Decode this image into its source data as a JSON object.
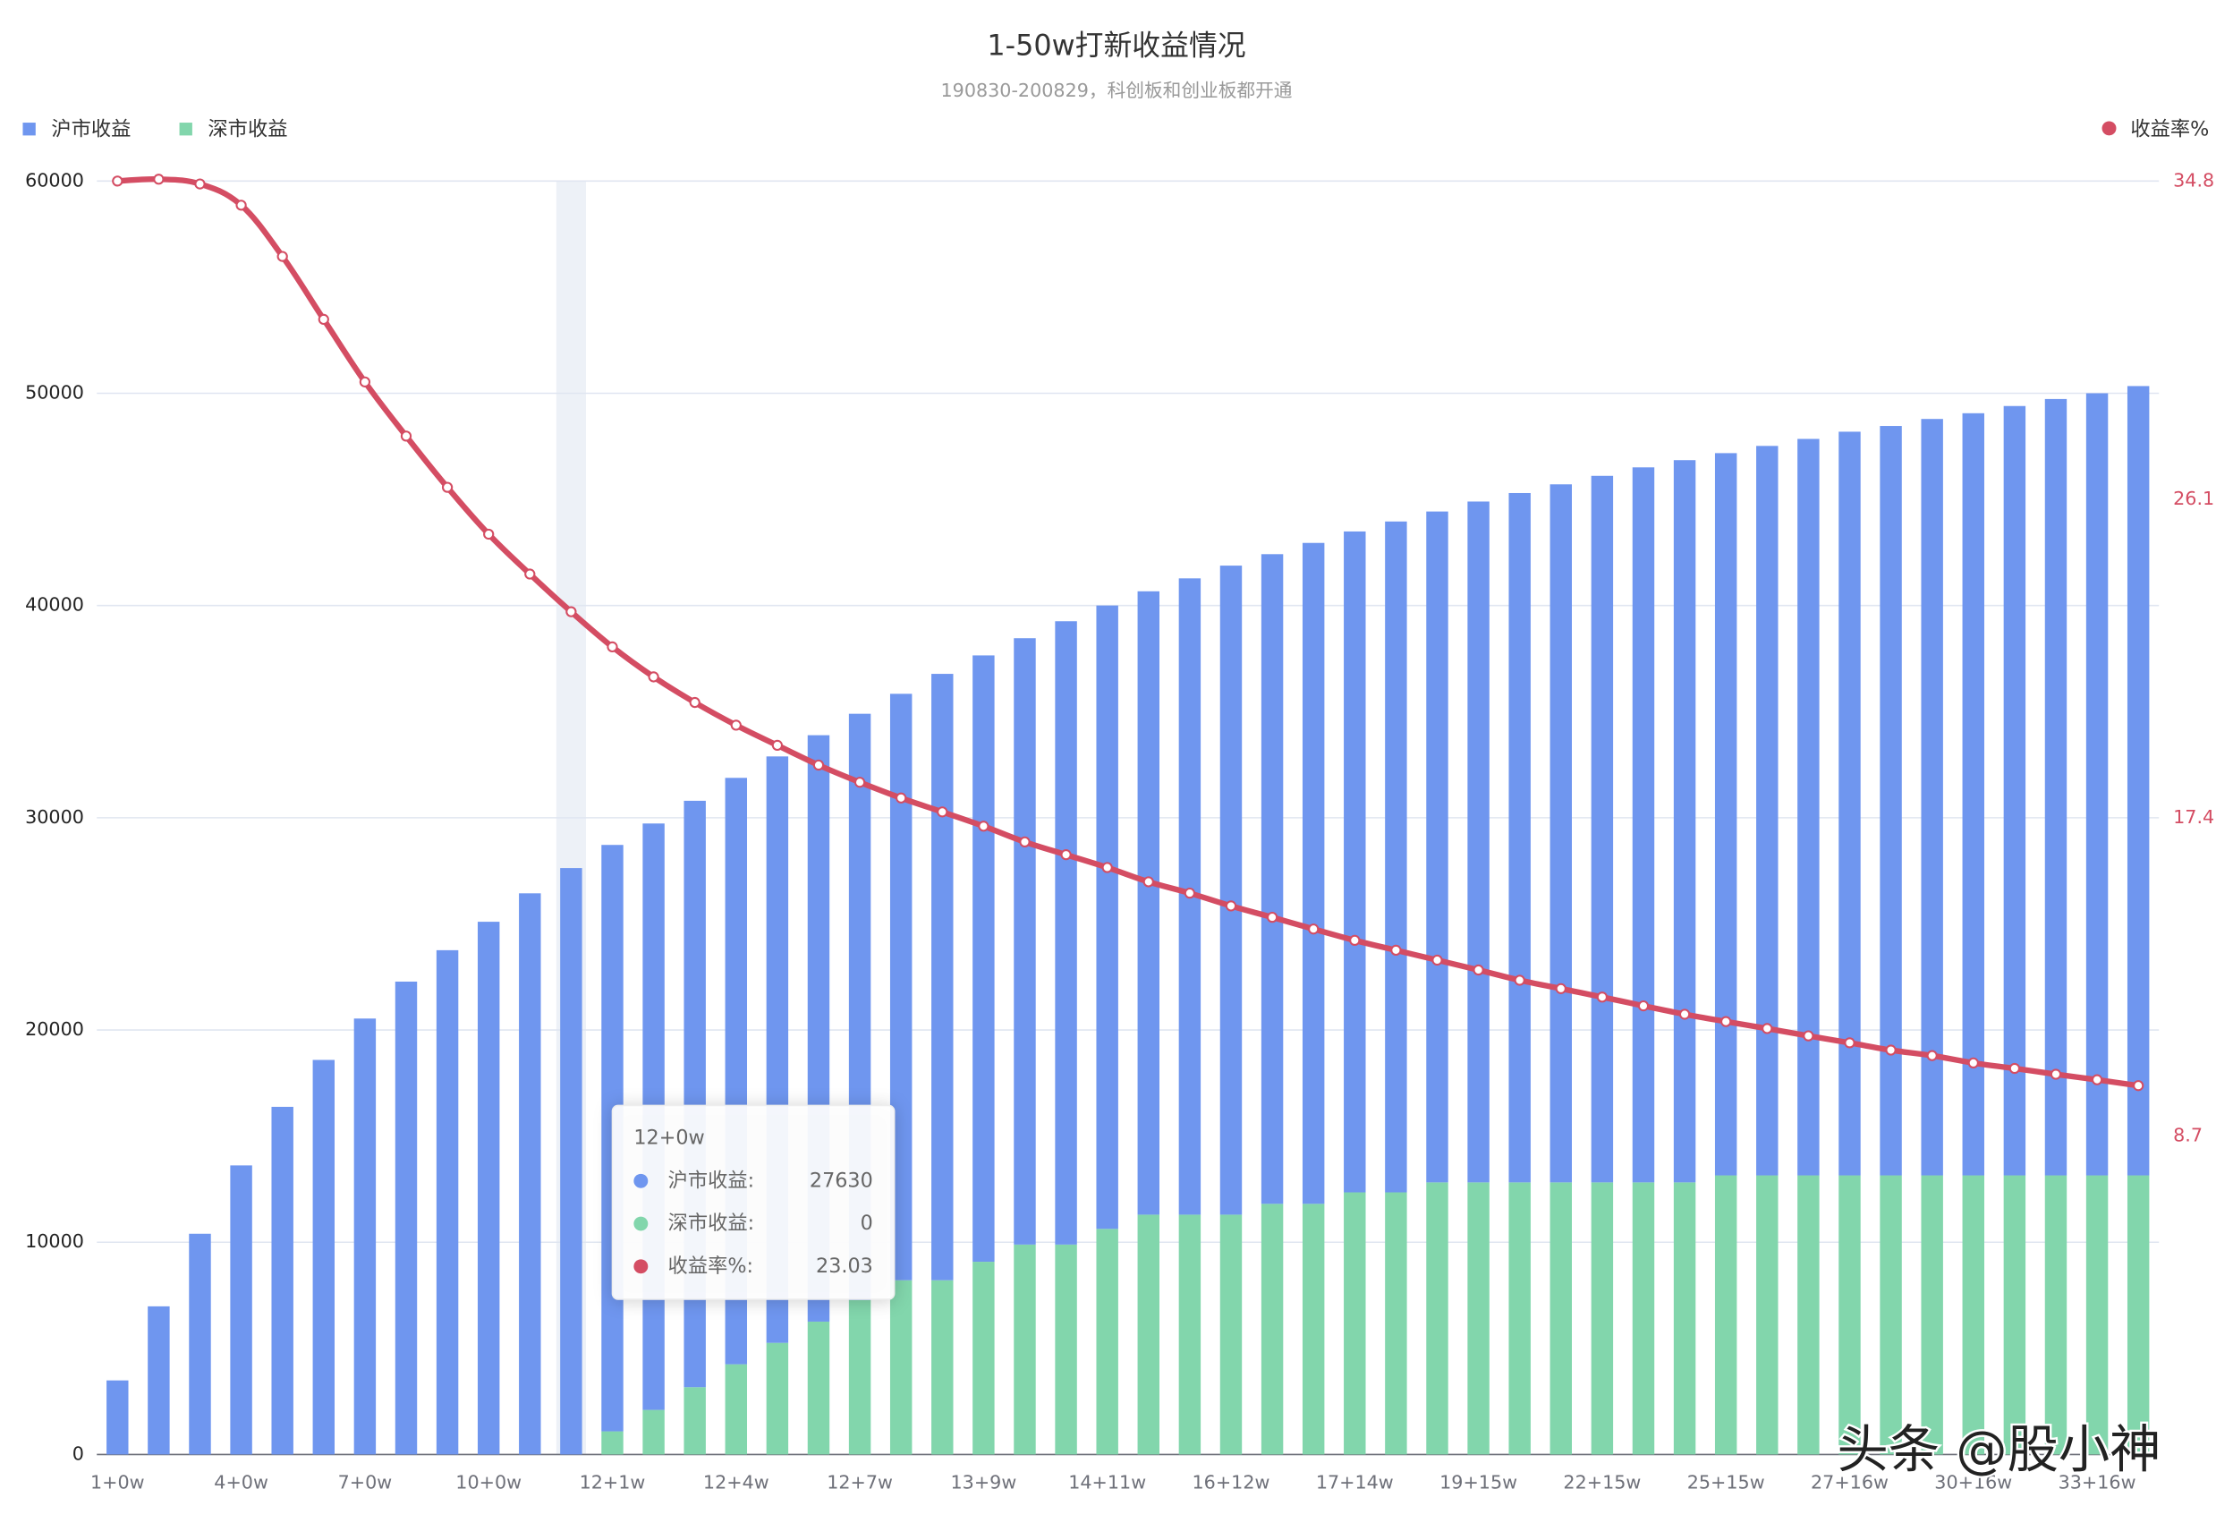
{
  "chart_data": {
    "type": "bar",
    "title": "1-50w打新收益情况",
    "subtitle": "190830-200829，科创板和创业板都开通",
    "categories": [
      "1+0w",
      null,
      null,
      "4+0w",
      null,
      null,
      "7+0w",
      null,
      null,
      "10+0w",
      null,
      null,
      "12+1w",
      null,
      null,
      "12+4w",
      null,
      null,
      "12+7w",
      null,
      null,
      "13+9w",
      null,
      null,
      "14+11w",
      null,
      null,
      "16+12w",
      null,
      null,
      "17+14w",
      null,
      null,
      "19+15w",
      null,
      null,
      "22+15w",
      null,
      null,
      "25+15w",
      null,
      null,
      "27+16w",
      null,
      null,
      "30+16w",
      null,
      null,
      "33+16w",
      null
    ],
    "series": [
      {
        "name": "沪市收益",
        "type": "bar",
        "color": "#6f96ef",
        "values": [
          3490,
          6980,
          10400,
          13620,
          16380,
          18590,
          20540,
          22280,
          23760,
          25100,
          26440,
          27630,
          27630,
          27630,
          27630,
          27630,
          27630,
          27630,
          27630,
          27630,
          28570,
          28570,
          28570,
          29370,
          29370,
          29370,
          29980,
          30580,
          30610,
          31140,
          31140,
          31610,
          31610,
          32080,
          32480,
          32890,
          33290,
          33690,
          34030,
          34030,
          34370,
          34700,
          35040,
          35310,
          35640,
          35910,
          36250,
          36580,
          36850,
          37190
        ]
      },
      {
        "name": "深市收益",
        "type": "bar",
        "color": "#82d6ac",
        "values": [
          0,
          0,
          0,
          0,
          0,
          0,
          0,
          0,
          0,
          0,
          0,
          0,
          1090,
          2100,
          3170,
          4250,
          5260,
          6260,
          7270,
          8210,
          8210,
          9080,
          9890,
          9890,
          10630,
          11300,
          11300,
          11300,
          11810,
          11810,
          12350,
          12350,
          12820,
          12820,
          12820,
          12820,
          12820,
          12820,
          12820,
          13150,
          13150,
          13150,
          13150,
          13150,
          13150,
          13150,
          13150,
          13150,
          13150,
          13150
        ]
      },
      {
        "name": "收益率%",
        "type": "line",
        "axis": "y2",
        "color": "#d44d63",
        "values": [
          34.8,
          34.85,
          34.72,
          34.14,
          32.74,
          31.02,
          29.31,
          27.83,
          26.43,
          25.15,
          24.06,
          23.03,
          22.07,
          21.25,
          20.55,
          19.93,
          19.38,
          18.84,
          18.37,
          17.94,
          17.56,
          17.17,
          16.74,
          16.39,
          16.04,
          15.65,
          15.34,
          14.99,
          14.68,
          14.36,
          14.05,
          13.78,
          13.51,
          13.24,
          12.96,
          12.73,
          12.5,
          12.26,
          12.03,
          11.83,
          11.64,
          11.44,
          11.25,
          11.05,
          10.9,
          10.7,
          10.55,
          10.39,
          10.24,
          10.08
        ]
      }
    ],
    "ylim": [
      0,
      60000
    ],
    "yticks": [
      0,
      10000,
      20000,
      30000,
      40000,
      50000,
      60000
    ],
    "y2lim": [
      0,
      34.8
    ],
    "y2ticks": [
      8.7,
      17.4,
      26.1,
      34.8
    ],
    "grid": true,
    "tooltip": {
      "title": "12+0w",
      "labels": [
        "沪市收益:",
        "深市收益:",
        "收益率%:"
      ]
    },
    "watermark": "头条 @股小神"
  }
}
